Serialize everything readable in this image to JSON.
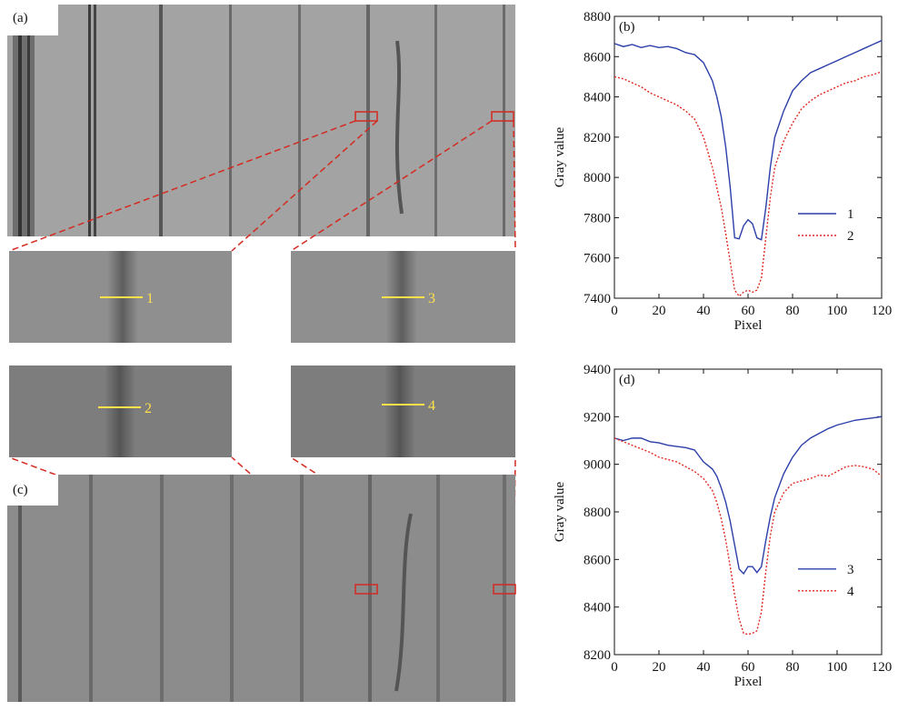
{
  "image_labels": {
    "top": "(a)",
    "bottom": "(c)"
  },
  "chart_data": [
    {
      "type": "line",
      "panel": "(b)",
      "xlabel": "Pixel",
      "ylabel": "Gray value",
      "xlim": [
        0,
        120
      ],
      "xticks": [
        0,
        20,
        40,
        60,
        80,
        100,
        120
      ],
      "ylim": [
        7400,
        8800
      ],
      "yticks": [
        7400,
        7600,
        7800,
        8000,
        8200,
        8400,
        8600,
        8800
      ],
      "x": [
        0,
        4,
        8,
        12,
        16,
        20,
        24,
        28,
        32,
        36,
        40,
        44,
        46,
        48,
        50,
        52,
        54,
        56,
        58,
        60,
        62,
        64,
        66,
        68,
        70,
        72,
        76,
        80,
        84,
        88,
        92,
        96,
        100,
        104,
        108,
        112,
        116,
        120
      ],
      "series": [
        {
          "name": "1",
          "color": "#2b3fa8",
          "dashed": false,
          "values": [
            8665,
            8650,
            8660,
            8645,
            8655,
            8645,
            8650,
            8640,
            8620,
            8610,
            8570,
            8480,
            8400,
            8300,
            8150,
            7950,
            7700,
            7695,
            7760,
            7790,
            7770,
            7700,
            7690,
            7850,
            8050,
            8200,
            8330,
            8430,
            8480,
            8520,
            8540,
            8560,
            8580,
            8600,
            8620,
            8640,
            8660,
            8680
          ]
        },
        {
          "name": "2",
          "color": "#e0281e",
          "dashed": true,
          "values": [
            8500,
            8490,
            8470,
            8450,
            8420,
            8400,
            8380,
            8360,
            8330,
            8290,
            8200,
            8050,
            7950,
            7850,
            7720,
            7580,
            7440,
            7410,
            7430,
            7440,
            7430,
            7440,
            7500,
            7700,
            7900,
            8050,
            8180,
            8270,
            8340,
            8380,
            8410,
            8430,
            8450,
            8470,
            8480,
            8500,
            8510,
            8525
          ]
        }
      ]
    },
    {
      "type": "line",
      "panel": "(d)",
      "xlabel": "Pixel",
      "ylabel": "Gray value",
      "xlim": [
        0,
        120
      ],
      "xticks": [
        0,
        20,
        40,
        60,
        80,
        100,
        120
      ],
      "ylim": [
        8200,
        9400
      ],
      "yticks": [
        8200,
        8400,
        8600,
        8800,
        9000,
        9200,
        9400
      ],
      "x": [
        0,
        4,
        8,
        12,
        16,
        20,
        24,
        28,
        32,
        36,
        40,
        44,
        46,
        48,
        50,
        52,
        54,
        56,
        58,
        60,
        62,
        64,
        66,
        68,
        70,
        72,
        76,
        80,
        84,
        88,
        92,
        96,
        100,
        104,
        108,
        112,
        116,
        120
      ],
      "series": [
        {
          "name": "3",
          "color": "#2b3fa8",
          "dashed": false,
          "values": [
            9110,
            9100,
            9110,
            9110,
            9095,
            9090,
            9080,
            9075,
            9070,
            9060,
            9010,
            8980,
            8950,
            8900,
            8840,
            8760,
            8660,
            8560,
            8540,
            8570,
            8570,
            8545,
            8570,
            8680,
            8780,
            8860,
            8960,
            9030,
            9080,
            9110,
            9130,
            9150,
            9165,
            9175,
            9185,
            9190,
            9195,
            9200
          ]
        },
        {
          "name": "4",
          "color": "#e0281e",
          "dashed": true,
          "values": [
            9110,
            9095,
            9080,
            9065,
            9050,
            9030,
            9020,
            9010,
            8990,
            8970,
            8940,
            8890,
            8840,
            8770,
            8680,
            8570,
            8450,
            8350,
            8290,
            8285,
            8290,
            8300,
            8380,
            8550,
            8700,
            8800,
            8880,
            8920,
            8930,
            8940,
            8955,
            8950,
            8970,
            8990,
            8995,
            8990,
            8980,
            8950
          ]
        }
      ]
    }
  ]
}
